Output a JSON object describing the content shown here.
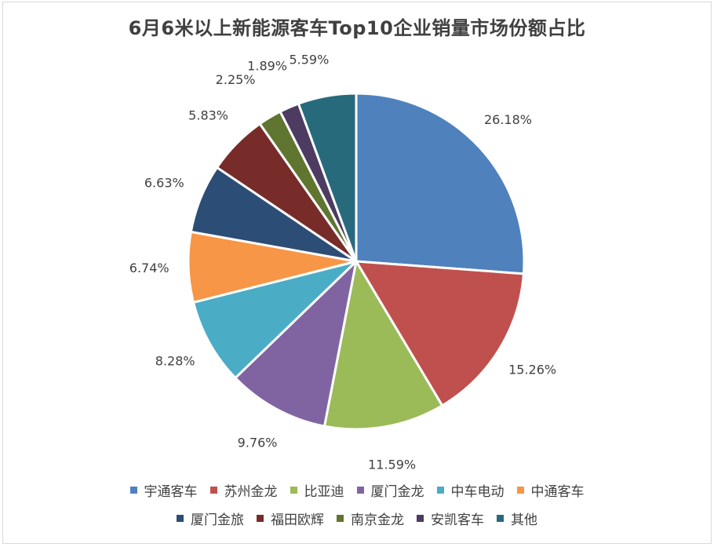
{
  "chart_data": {
    "type": "pie",
    "title": "6月6米以上新能源客车Top10企业销量市场份额占比",
    "start_angle_deg": 0,
    "direction": "clockwise",
    "legend_position": "bottom",
    "slices": [
      {
        "name": "宇通客车",
        "value": 26.18,
        "label": "26.18%",
        "color": "#4F81BD"
      },
      {
        "name": "苏州金龙",
        "value": 15.26,
        "label": "15.26%",
        "color": "#C0504D"
      },
      {
        "name": "比亚迪",
        "value": 11.59,
        "label": "11.59%",
        "color": "#9BBB59"
      },
      {
        "name": "厦门金龙",
        "value": 9.76,
        "label": "9.76%",
        "color": "#8064A2"
      },
      {
        "name": "中车电动",
        "value": 8.28,
        "label": "8.28%",
        "color": "#4BACC6"
      },
      {
        "name": "中通客车",
        "value": 6.74,
        "label": "6.74%",
        "color": "#F79646"
      },
      {
        "name": "厦门金旅",
        "value": 6.63,
        "label": "6.63%",
        "color": "#2C4D75"
      },
      {
        "name": "福田欧辉",
        "value": 5.83,
        "label": "5.83%",
        "color": "#772C2A"
      },
      {
        "name": "南京金龙",
        "value": 2.25,
        "label": "2.25%",
        "color": "#5F7530"
      },
      {
        "name": "安凯客车",
        "value": 1.89,
        "label": "1.89%",
        "color": "#4D3B62"
      },
      {
        "name": "其他",
        "value": 5.59,
        "label": "5.59%",
        "color": "#276A7C"
      }
    ]
  }
}
